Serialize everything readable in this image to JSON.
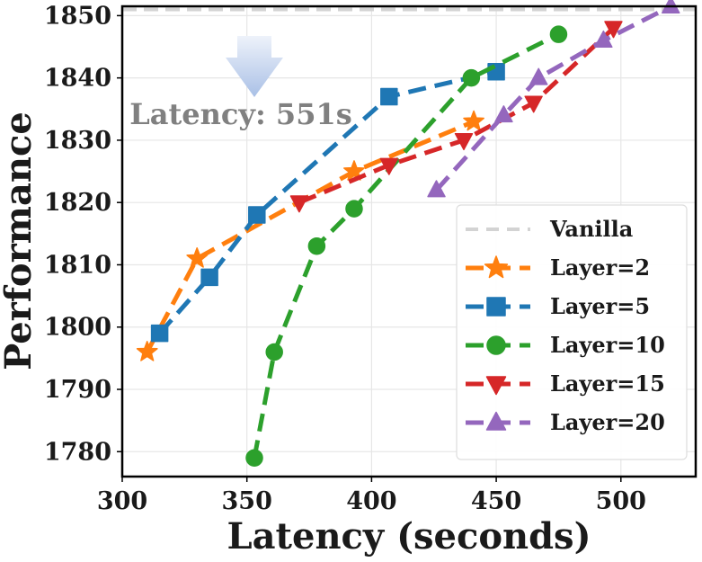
{
  "chart_data": {
    "type": "line",
    "title": "",
    "xlabel": "Latency (seconds)",
    "ylabel": "Performance",
    "xlim": [
      300,
      530
    ],
    "ylim": [
      1776,
      1851.5
    ],
    "xticks": [
      300,
      350,
      400,
      450,
      500
    ],
    "yticks": [
      1780,
      1790,
      1800,
      1810,
      1820,
      1830,
      1840,
      1850
    ],
    "grid": true,
    "legend_position": "bottom-right",
    "baseline": {
      "name": "Vanilla",
      "value": 1851,
      "color": "#d3d3d3"
    },
    "annotation": {
      "text": "Latency: 551s",
      "color": "#808080"
    },
    "series": [
      {
        "name": "Layer=2",
        "color": "#ff7f0e",
        "marker": "star",
        "x": [
          310,
          330,
          393,
          441
        ],
        "y": [
          1796,
          1811,
          1825,
          1833
        ]
      },
      {
        "name": "Layer=5",
        "color": "#1f77b4",
        "marker": "square",
        "x": [
          315,
          335,
          354,
          407,
          450
        ],
        "y": [
          1799,
          1808,
          1818,
          1837,
          1841
        ]
      },
      {
        "name": "Layer=10",
        "color": "#2ca02c",
        "marker": "circle",
        "x": [
          353,
          361,
          378,
          393,
          440,
          475
        ],
        "y": [
          1779,
          1796,
          1813,
          1819,
          1840,
          1847
        ]
      },
      {
        "name": "Layer=15",
        "color": "#d62728",
        "marker": "triangle-down",
        "x": [
          371,
          407,
          437,
          465,
          497
        ],
        "y": [
          1820,
          1826,
          1830,
          1836,
          1848
        ]
      },
      {
        "name": "Layer=20",
        "color": "#9467bd",
        "marker": "triangle-up",
        "x": [
          426,
          453,
          467,
          493,
          520
        ],
        "y": [
          1822,
          1834,
          1840,
          1846,
          1851.5
        ]
      }
    ]
  }
}
